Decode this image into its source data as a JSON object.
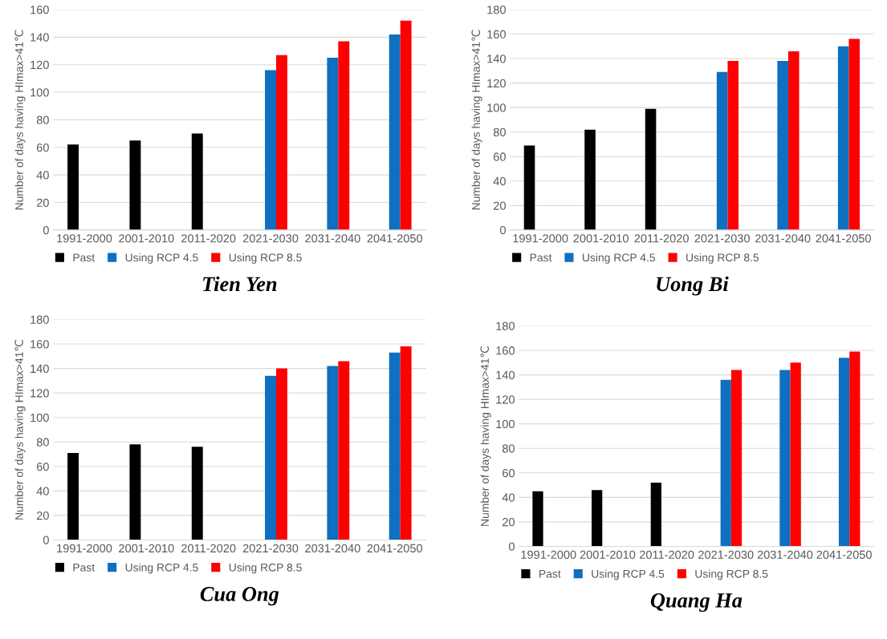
{
  "chart_data": [
    {
      "type": "bar",
      "title": "Tien Yen",
      "ylabel": "Number of days having HImax>41℃",
      "categories": [
        "1991-2000",
        "2001-2010",
        "2011-2020",
        "2021-2030",
        "2031-2040",
        "2041-2050"
      ],
      "ylim": [
        0,
        160
      ],
      "yticks": [
        0,
        20,
        40,
        60,
        80,
        100,
        120,
        140,
        160
      ],
      "grid": "y",
      "legend": "bottom",
      "series": [
        {
          "name": "Past",
          "color": "#000000",
          "values": [
            62,
            65,
            70,
            null,
            null,
            null
          ]
        },
        {
          "name": "Using RCP 4.5",
          "color": "#0f6fc0",
          "values": [
            null,
            null,
            null,
            116,
            125,
            142
          ]
        },
        {
          "name": "Using RCP 8.5",
          "color": "#ff0000",
          "values": [
            null,
            null,
            null,
            127,
            137,
            152
          ]
        }
      ]
    },
    {
      "type": "bar",
      "title": "Uong Bi",
      "ylabel": "Number of days having HImax>41℃",
      "categories": [
        "1991-2000",
        "2001-2010",
        "2011-2020",
        "2021-2030",
        "2031-2040",
        "2041-2050"
      ],
      "ylim": [
        0,
        180
      ],
      "yticks": [
        0,
        20,
        40,
        60,
        80,
        100,
        120,
        140,
        160,
        180
      ],
      "grid": "y",
      "legend": "bottom",
      "series": [
        {
          "name": "Past",
          "color": "#000000",
          "values": [
            69,
            82,
            99,
            null,
            null,
            null
          ]
        },
        {
          "name": "Using RCP 4.5",
          "color": "#0f6fc0",
          "values": [
            null,
            null,
            null,
            129,
            138,
            150
          ]
        },
        {
          "name": "Using RCP 8.5",
          "color": "#ff0000",
          "values": [
            null,
            null,
            null,
            138,
            146,
            156
          ]
        }
      ]
    },
    {
      "type": "bar",
      "title": "Cua Ong",
      "ylabel": "Number of days having HImax>41℃",
      "categories": [
        "1991-2000",
        "2001-2010",
        "2011-2020",
        "2021-2030",
        "2031-2040",
        "2041-2050"
      ],
      "ylim": [
        0,
        180
      ],
      "yticks": [
        0,
        20,
        40,
        60,
        80,
        100,
        120,
        140,
        160,
        180
      ],
      "grid": "y",
      "legend": "bottom",
      "series": [
        {
          "name": "Past",
          "color": "#000000",
          "values": [
            71,
            78,
            76,
            null,
            null,
            null
          ]
        },
        {
          "name": "Using RCP 4.5",
          "color": "#0f6fc0",
          "values": [
            null,
            null,
            null,
            134,
            142,
            153
          ]
        },
        {
          "name": "Using RCP 8.5",
          "color": "#ff0000",
          "values": [
            null,
            null,
            null,
            140,
            146,
            158
          ]
        }
      ]
    },
    {
      "type": "bar",
      "title": "Quang Ha",
      "ylabel": "Number of days having HImax>41℃",
      "categories": [
        "1991-2000",
        "2001-2010",
        "2011-2020",
        "2021-2030",
        "2031-2040",
        "2041-2050"
      ],
      "ylim": [
        0,
        180
      ],
      "yticks": [
        0,
        20,
        40,
        60,
        80,
        100,
        120,
        140,
        160,
        180
      ],
      "grid": "y",
      "legend": "bottom",
      "series": [
        {
          "name": "Past",
          "color": "#000000",
          "values": [
            45,
            46,
            52,
            null,
            null,
            null
          ]
        },
        {
          "name": "Using RCP 4.5",
          "color": "#0f6fc0",
          "values": [
            null,
            null,
            null,
            136,
            144,
            154
          ]
        },
        {
          "name": "Using RCP 8.5",
          "color": "#ff0000",
          "values": [
            null,
            null,
            null,
            144,
            150,
            159
          ]
        }
      ]
    }
  ]
}
